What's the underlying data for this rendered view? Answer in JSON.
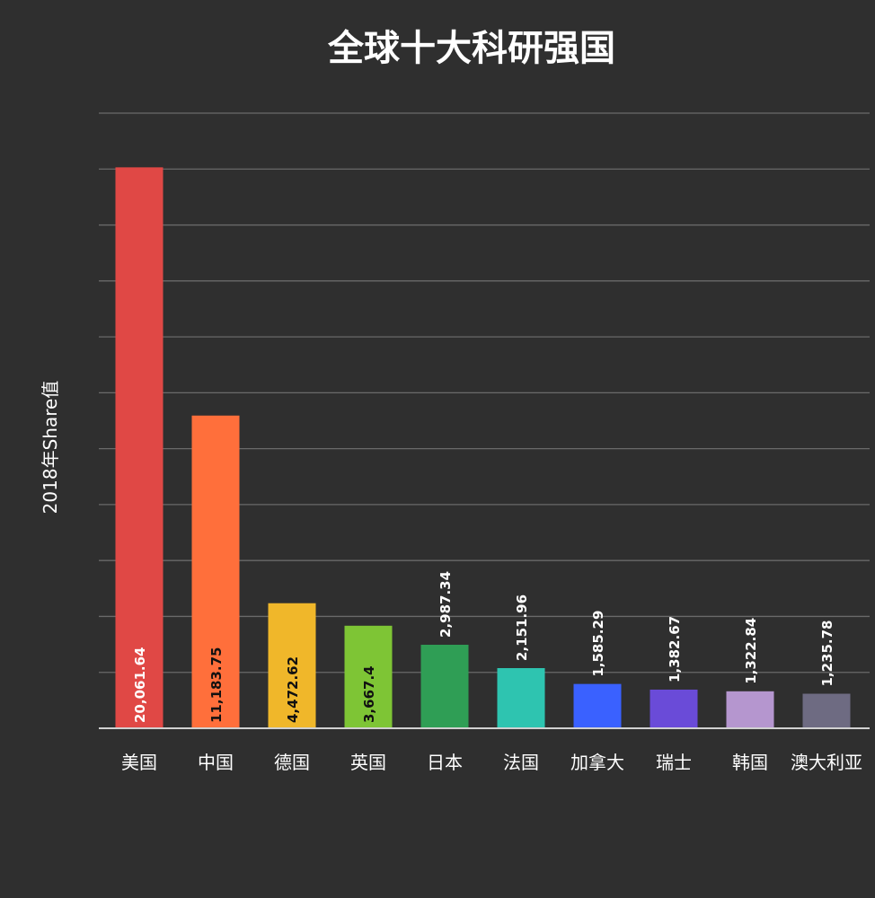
{
  "chart_data": {
    "type": "bar",
    "title": "全球十大科研强国",
    "ylabel": "2018年Share值",
    "xlabel": "",
    "ylim": [
      0,
      22000
    ],
    "grid": true,
    "categories": [
      "美国",
      "中国",
      "德国",
      "英国",
      "日本",
      "法国",
      "加拿大",
      "瑞士",
      "韩国",
      "澳大利亚"
    ],
    "values": [
      20061.64,
      11183.75,
      4472.62,
      3667.4,
      2987.34,
      2151.96,
      1585.29,
      1382.67,
      1322.84,
      1235.78
    ],
    "value_labels": [
      "20,061.64",
      "11,183.75",
      "4,472.62",
      "3,667.4",
      "2,987.34",
      "2,151.96",
      "1,585.29",
      "1,382.67",
      "1,322.84",
      "1,235.78"
    ],
    "colors": [
      "#e04845",
      "#ff6f3b",
      "#f0b72a",
      "#7ec535",
      "#2f9e55",
      "#2ec4b0",
      "#3a61ff",
      "#6a4bd8",
      "#b596cf",
      "#6e6b82"
    ]
  }
}
